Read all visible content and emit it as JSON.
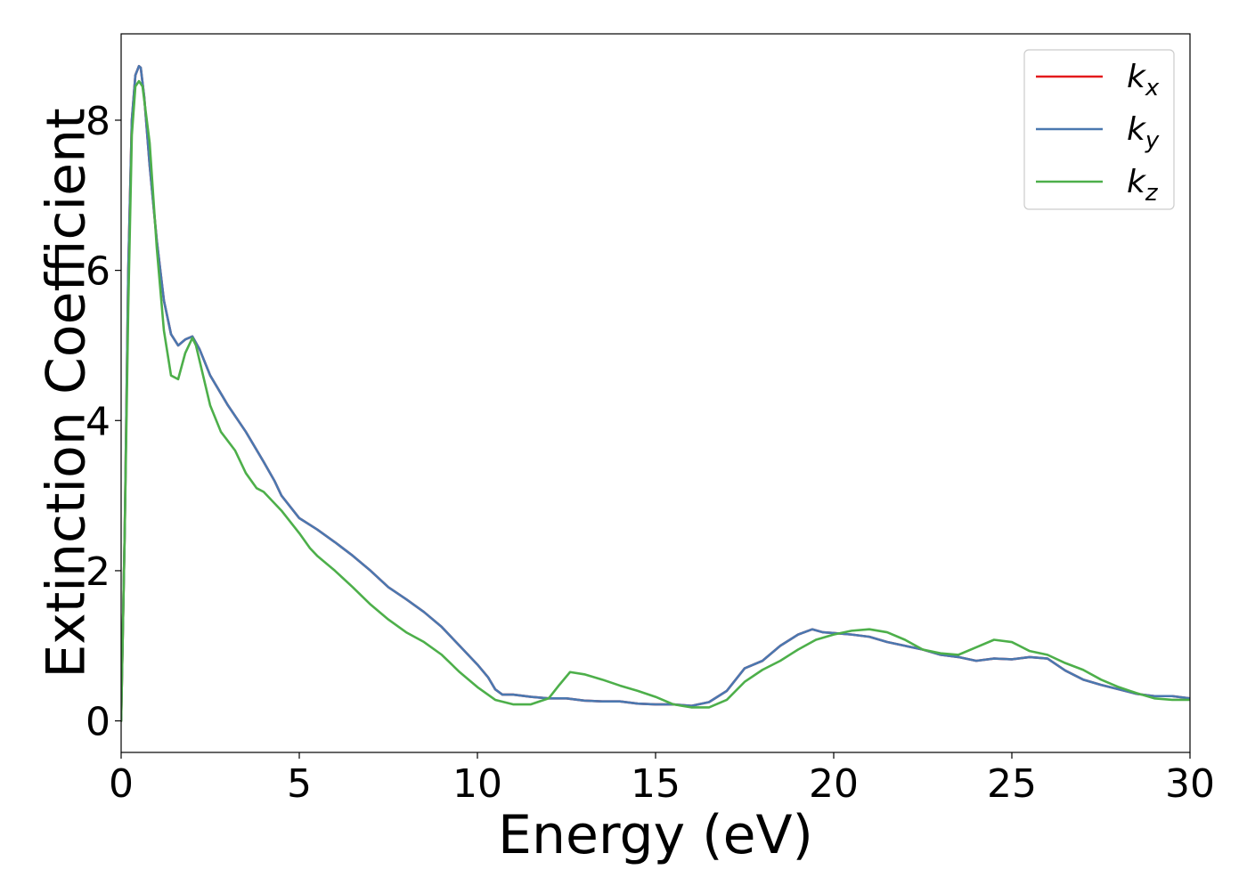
{
  "chart_data": {
    "type": "line",
    "xlabel": "Energy (eV)",
    "ylabel": "Extinction Coefficient",
    "xlim": [
      0,
      30
    ],
    "ylim": [
      -0.42,
      9.15
    ],
    "xticks": [
      0,
      5,
      10,
      15,
      20,
      25,
      30
    ],
    "yticks": [
      0,
      2,
      4,
      6,
      8
    ],
    "grid": false,
    "legend_position": "top-right",
    "series": [
      {
        "name": "k",
        "subscript": "x",
        "color": "#e41a1c",
        "x": [
          0.0,
          0.1,
          0.2,
          0.3,
          0.4,
          0.5,
          0.55,
          0.65,
          0.8,
          1.0,
          1.2,
          1.4,
          1.6,
          1.8,
          2.0,
          2.2,
          2.5,
          3.0,
          3.5,
          4.0,
          4.3,
          4.5,
          5.0,
          5.5,
          6.0,
          6.5,
          7.0,
          7.5,
          8.0,
          8.5,
          9.0,
          9.5,
          10.0,
          10.3,
          10.5,
          10.7,
          11.0,
          11.5,
          12.0,
          12.5,
          13.0,
          13.5,
          14.0,
          14.5,
          15.0,
          15.5,
          16.0,
          16.5,
          17.0,
          17.5,
          18.0,
          18.5,
          19.0,
          19.4,
          19.7,
          20.0,
          20.5,
          21.0,
          21.5,
          22.0,
          22.5,
          23.0,
          23.5,
          24.0,
          24.5,
          25.0,
          25.5,
          26.0,
          26.5,
          27.0,
          27.5,
          28.0,
          28.5,
          29.0,
          29.5,
          30.0
        ],
        "values": [
          0.0,
          2.5,
          6.0,
          8.0,
          8.6,
          8.72,
          8.7,
          8.3,
          7.4,
          6.4,
          5.6,
          5.15,
          5.0,
          5.08,
          5.12,
          4.95,
          4.6,
          4.2,
          3.85,
          3.45,
          3.2,
          3.0,
          2.7,
          2.55,
          2.38,
          2.2,
          2.0,
          1.78,
          1.62,
          1.45,
          1.25,
          1.0,
          0.75,
          0.58,
          0.42,
          0.35,
          0.35,
          0.32,
          0.3,
          0.3,
          0.27,
          0.26,
          0.26,
          0.23,
          0.22,
          0.22,
          0.2,
          0.25,
          0.4,
          0.7,
          0.8,
          1.0,
          1.15,
          1.22,
          1.18,
          1.17,
          1.15,
          1.12,
          1.05,
          1.0,
          0.95,
          0.88,
          0.85,
          0.8,
          0.83,
          0.82,
          0.85,
          0.83,
          0.67,
          0.55,
          0.48,
          0.42,
          0.36,
          0.33,
          0.33,
          0.3
        ]
      },
      {
        "name": "k",
        "subscript": "y",
        "color": "#4a78b0",
        "x": [
          0.0,
          0.1,
          0.2,
          0.3,
          0.4,
          0.5,
          0.55,
          0.65,
          0.8,
          1.0,
          1.2,
          1.4,
          1.6,
          1.8,
          2.0,
          2.2,
          2.5,
          3.0,
          3.5,
          4.0,
          4.3,
          4.5,
          5.0,
          5.5,
          6.0,
          6.5,
          7.0,
          7.5,
          8.0,
          8.5,
          9.0,
          9.5,
          10.0,
          10.3,
          10.5,
          10.7,
          11.0,
          11.5,
          12.0,
          12.5,
          13.0,
          13.5,
          14.0,
          14.5,
          15.0,
          15.5,
          16.0,
          16.5,
          17.0,
          17.5,
          18.0,
          18.5,
          19.0,
          19.4,
          19.7,
          20.0,
          20.5,
          21.0,
          21.5,
          22.0,
          22.5,
          23.0,
          23.5,
          24.0,
          24.5,
          25.0,
          25.5,
          26.0,
          26.5,
          27.0,
          27.5,
          28.0,
          28.5,
          29.0,
          29.5,
          30.0
        ],
        "values": [
          0.0,
          2.5,
          6.0,
          8.0,
          8.6,
          8.72,
          8.7,
          8.3,
          7.4,
          6.4,
          5.6,
          5.15,
          5.0,
          5.08,
          5.12,
          4.95,
          4.6,
          4.2,
          3.85,
          3.45,
          3.2,
          3.0,
          2.7,
          2.55,
          2.38,
          2.2,
          2.0,
          1.78,
          1.62,
          1.45,
          1.25,
          1.0,
          0.75,
          0.58,
          0.42,
          0.35,
          0.35,
          0.32,
          0.3,
          0.3,
          0.27,
          0.26,
          0.26,
          0.23,
          0.22,
          0.22,
          0.2,
          0.25,
          0.4,
          0.7,
          0.8,
          1.0,
          1.15,
          1.22,
          1.18,
          1.17,
          1.15,
          1.12,
          1.05,
          1.0,
          0.95,
          0.88,
          0.85,
          0.8,
          0.83,
          0.82,
          0.85,
          0.83,
          0.67,
          0.55,
          0.48,
          0.42,
          0.36,
          0.33,
          0.33,
          0.3
        ]
      },
      {
        "name": "k",
        "subscript": "z",
        "color": "#4daf4a",
        "x": [
          0.0,
          0.1,
          0.2,
          0.3,
          0.4,
          0.5,
          0.6,
          0.8,
          1.0,
          1.2,
          1.4,
          1.6,
          1.8,
          2.0,
          2.1,
          2.3,
          2.5,
          2.8,
          3.2,
          3.5,
          3.8,
          4.0,
          4.5,
          5.0,
          5.3,
          5.5,
          6.0,
          6.5,
          7.0,
          7.5,
          8.0,
          8.5,
          9.0,
          9.5,
          10.0,
          10.5,
          11.0,
          11.5,
          12.0,
          12.3,
          12.6,
          13.0,
          13.5,
          14.0,
          14.5,
          15.0,
          15.5,
          16.0,
          16.5,
          17.0,
          17.5,
          18.0,
          18.5,
          19.0,
          19.5,
          20.0,
          20.5,
          21.0,
          21.5,
          22.0,
          22.5,
          23.0,
          23.5,
          24.0,
          24.5,
          25.0,
          25.5,
          26.0,
          26.5,
          27.0,
          27.5,
          28.0,
          28.5,
          29.0,
          29.5,
          30.0
        ],
        "values": [
          0.0,
          2.5,
          5.5,
          7.8,
          8.45,
          8.52,
          8.45,
          7.7,
          6.3,
          5.2,
          4.6,
          4.55,
          4.9,
          5.1,
          5.0,
          4.6,
          4.2,
          3.85,
          3.6,
          3.3,
          3.1,
          3.05,
          2.8,
          2.5,
          2.3,
          2.2,
          2.0,
          1.78,
          1.55,
          1.35,
          1.18,
          1.05,
          0.88,
          0.65,
          0.45,
          0.28,
          0.22,
          0.22,
          0.3,
          0.48,
          0.65,
          0.62,
          0.55,
          0.47,
          0.4,
          0.32,
          0.22,
          0.18,
          0.18,
          0.28,
          0.52,
          0.68,
          0.8,
          0.95,
          1.08,
          1.15,
          1.2,
          1.22,
          1.18,
          1.08,
          0.95,
          0.9,
          0.88,
          0.98,
          1.08,
          1.05,
          0.93,
          0.88,
          0.77,
          0.68,
          0.55,
          0.45,
          0.37,
          0.3,
          0.28,
          0.28
        ]
      }
    ]
  }
}
